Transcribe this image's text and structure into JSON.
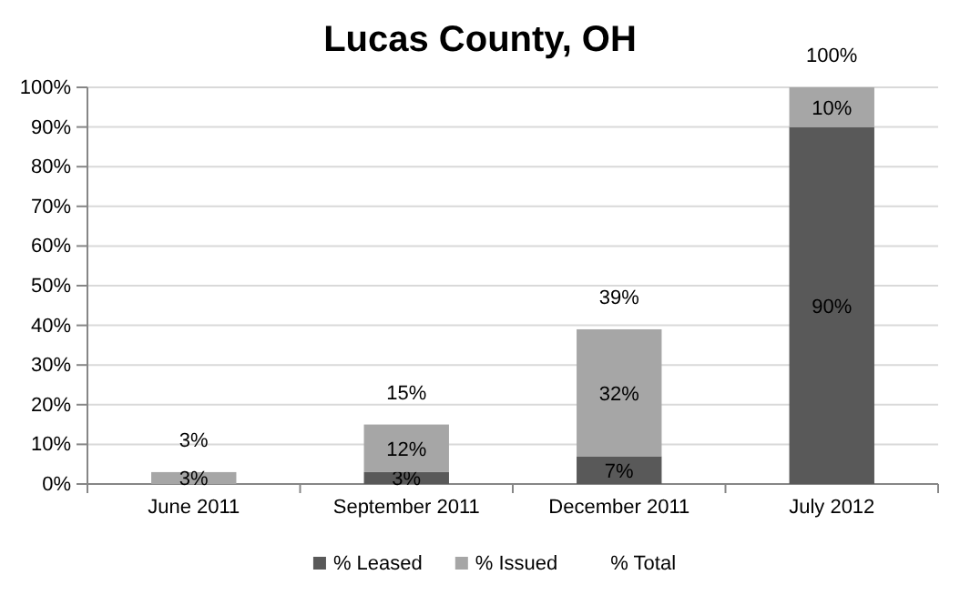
{
  "chart_data": {
    "type": "bar",
    "title": "Lucas County, OH",
    "stacked": true,
    "categories": [
      "June 2011",
      "September 2011",
      "December 2011",
      "July 2012"
    ],
    "series": [
      {
        "name": "% Leased",
        "color": "#595959",
        "values": [
          0,
          3,
          7,
          90
        ],
        "value_labels": [
          null,
          "3%",
          "7%",
          "90%"
        ]
      },
      {
        "name": "% Issued",
        "color": "#a6a6a6",
        "values": [
          3,
          12,
          32,
          10
        ],
        "value_labels": [
          "3%",
          "12%",
          "32%",
          "10%"
        ]
      },
      {
        "name": "% Total",
        "type": "scatter",
        "marker": "none",
        "values": [
          null,
          null,
          null,
          null
        ]
      }
    ],
    "totals": [
      "3%",
      "15%",
      "39%",
      "100%"
    ],
    "ylim": [
      0,
      100
    ],
    "yticks": [
      {
        "value": 0,
        "label": "0%"
      },
      {
        "value": 10,
        "label": "10%"
      },
      {
        "value": 20,
        "label": "20%"
      },
      {
        "value": 30,
        "label": "30%"
      },
      {
        "value": 40,
        "label": "40%"
      },
      {
        "value": 50,
        "label": "50%"
      },
      {
        "value": 60,
        "label": "60%"
      },
      {
        "value": 70,
        "label": "70%"
      },
      {
        "value": 80,
        "label": "80%"
      },
      {
        "value": 90,
        "label": "90%"
      },
      {
        "value": 100,
        "label": "100%"
      }
    ],
    "grid": "y",
    "legend": "bottom"
  }
}
